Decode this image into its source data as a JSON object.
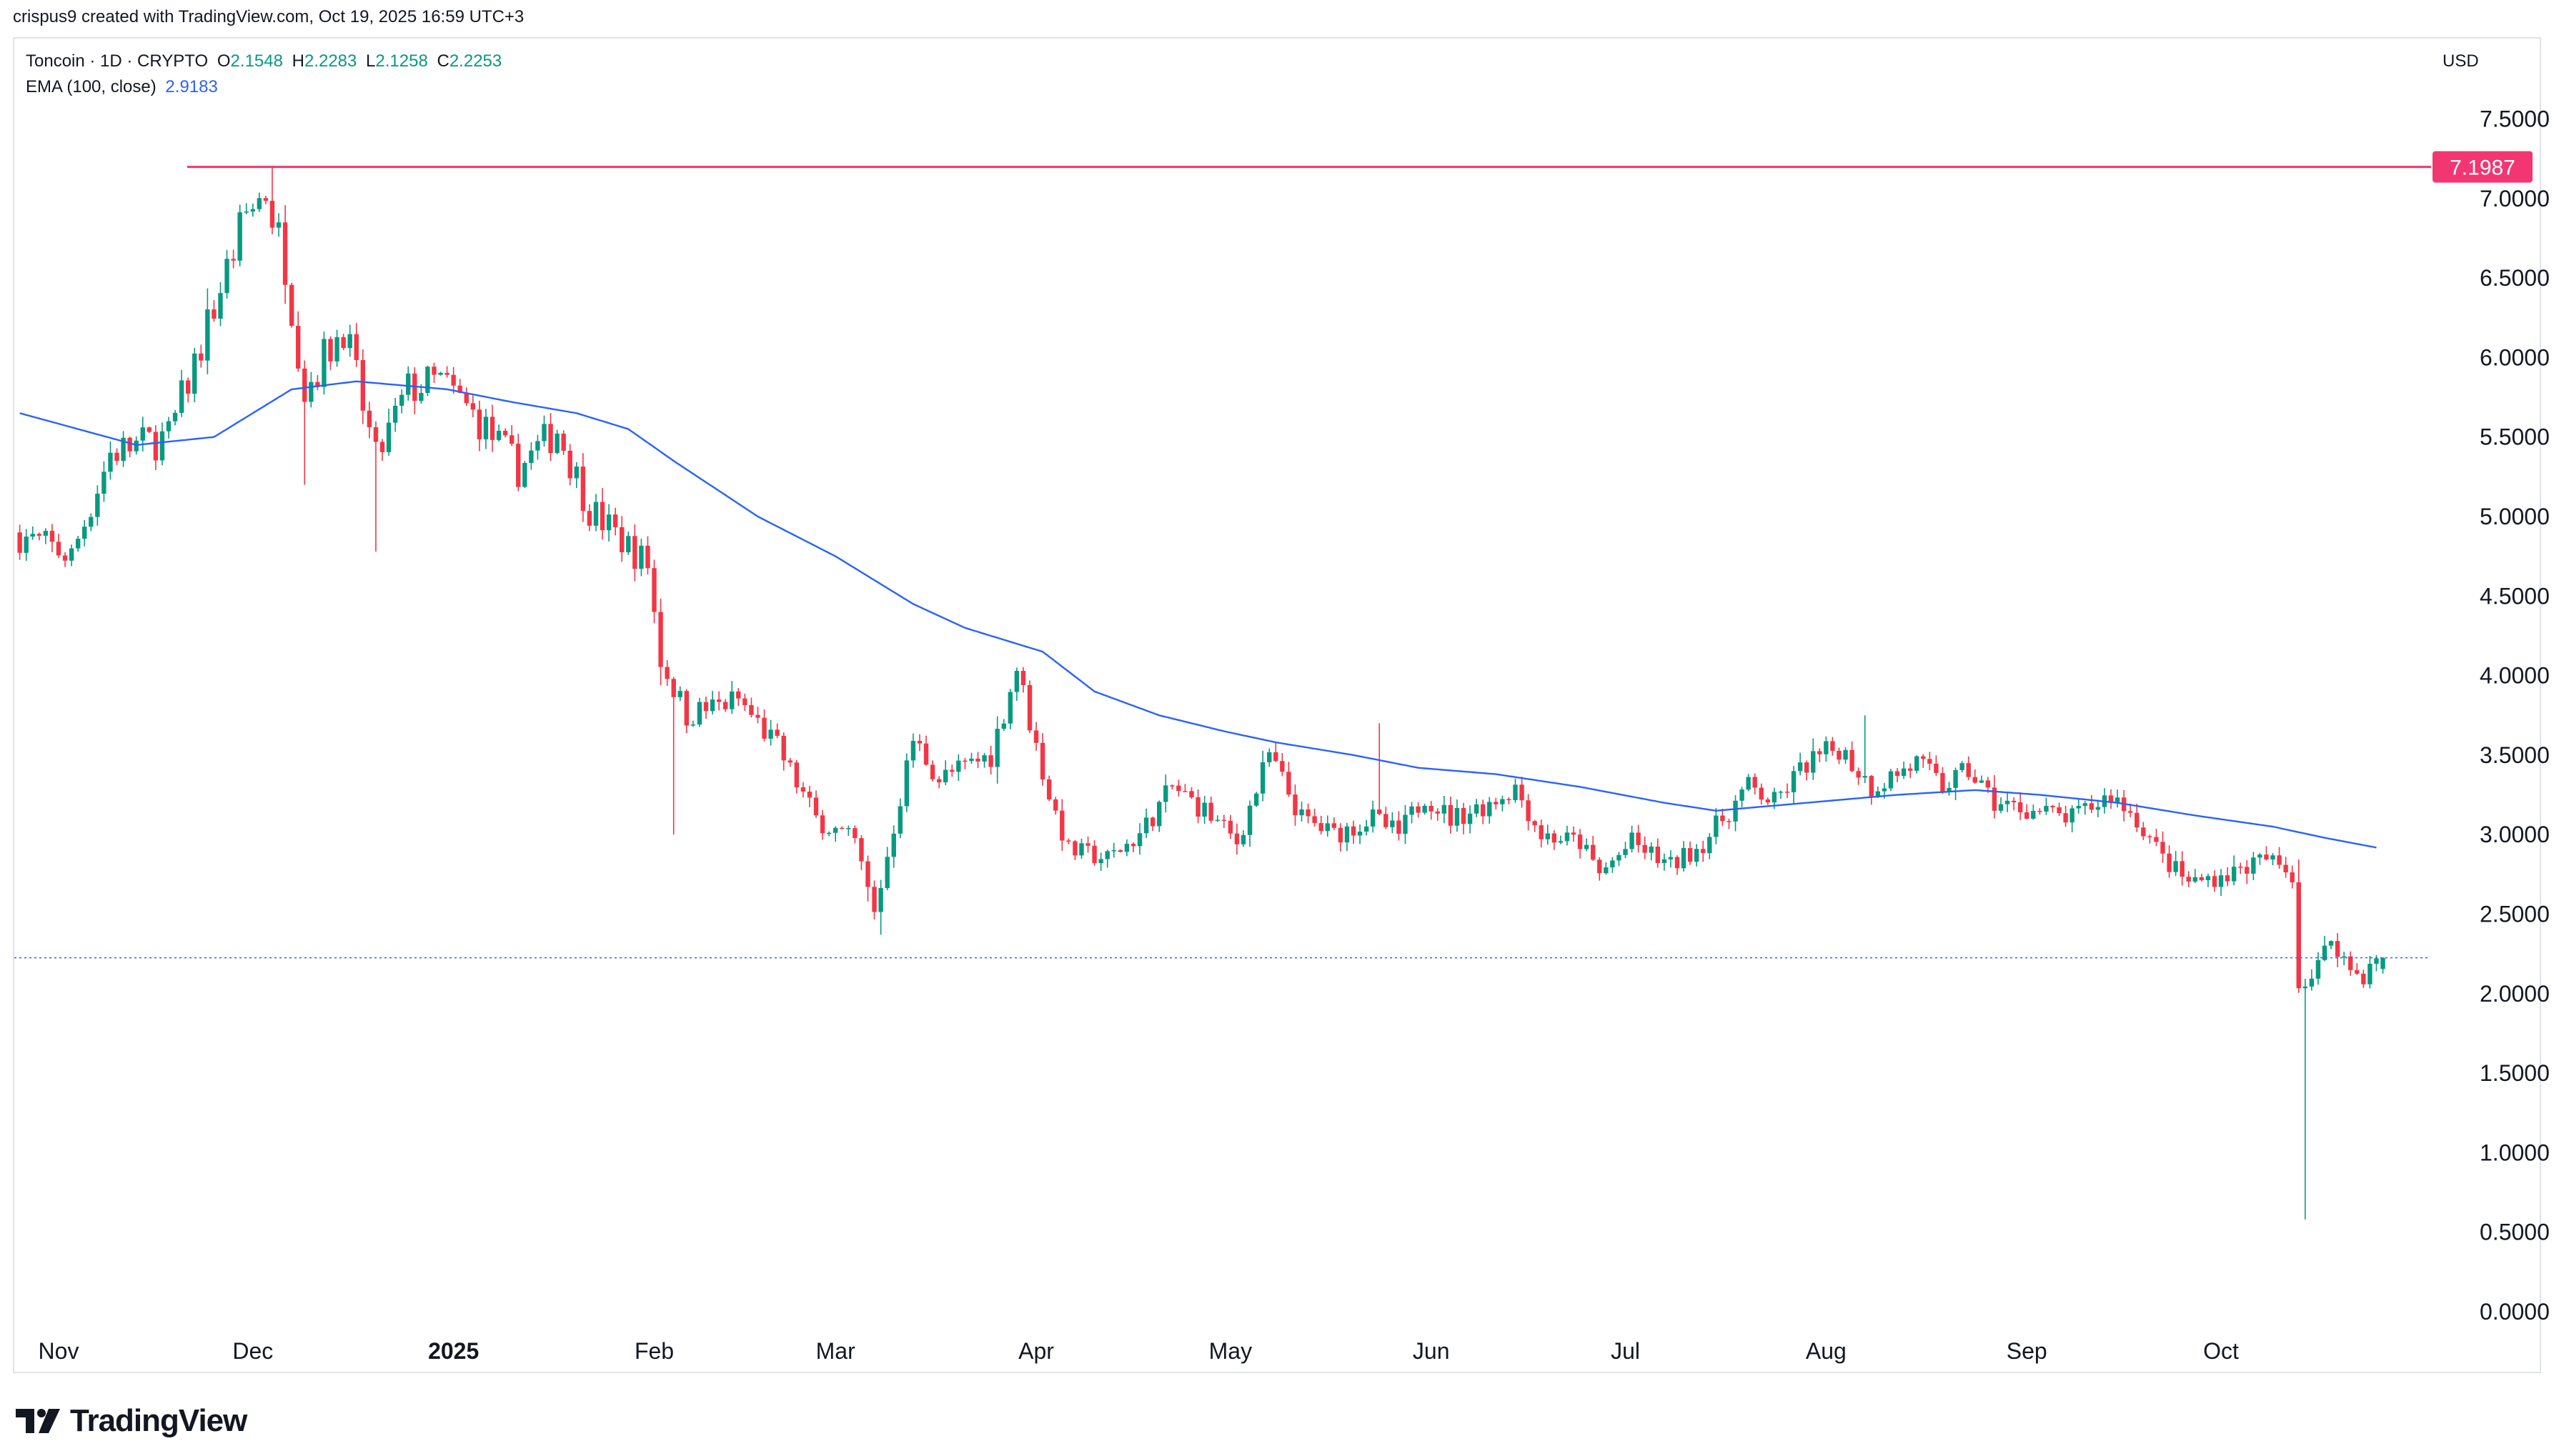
{
  "header": {
    "attribution": "crispus9 created with TradingView.com, Oct 19, 2025 16:59 UTC+3"
  },
  "legend": {
    "symbol": "Toncoin · 1D · CRYPTO",
    "o_label": "O",
    "o_value": "2.1548",
    "h_label": "H",
    "h_value": "2.2283",
    "l_label": "L",
    "l_value": "2.1258",
    "c_label": "C",
    "c_value": "2.2253",
    "ema_label": "EMA (100, close)",
    "ema_value": "2.9183"
  },
  "currency": "USD",
  "horizontal_line": {
    "value": 7.1987,
    "label": "7.1987",
    "color": "#f23671"
  },
  "current_price": 2.2253,
  "colors": {
    "up": "#089981",
    "down": "#f23645",
    "ema": "#2962ff",
    "hline": "#f23671",
    "grid": "#e0e3eb"
  },
  "branding": {
    "name": "TradingView"
  },
  "chart_data": {
    "type": "candlestick",
    "x_axis_labels": [
      "Nov",
      "Dec",
      "2025",
      "Feb",
      "Mar",
      "Apr",
      "May",
      "Jun",
      "Jul",
      "Aug",
      "Sep",
      "Oct"
    ],
    "x_axis_label_day_index": [
      0,
      30,
      61,
      92,
      120,
      151,
      181,
      212,
      242,
      273,
      304,
      334
    ],
    "y_ticks": [
      "0.0000",
      "0.5000",
      "1.0000",
      "1.5000",
      "2.0000",
      "2.5000",
      "3.0000",
      "3.5000",
      "4.0000",
      "4.5000",
      "5.0000",
      "5.5000",
      "6.0000",
      "6.5000",
      "7.0000",
      "7.5000"
    ],
    "ylim": [
      0,
      7.5
    ],
    "price_anchors": [
      [
        -6,
        4.9
      ],
      [
        3,
        4.75
      ],
      [
        9,
        5.4
      ],
      [
        18,
        5.5
      ],
      [
        24,
        6.2
      ],
      [
        30,
        6.9
      ],
      [
        33,
        7.05
      ],
      [
        36,
        6.6
      ],
      [
        39,
        5.8
      ],
      [
        45,
        6.2
      ],
      [
        50,
        5.35
      ],
      [
        55,
        5.8
      ],
      [
        60,
        5.85
      ],
      [
        66,
        5.6
      ],
      [
        72,
        5.3
      ],
      [
        78,
        5.55
      ],
      [
        83,
        5.05
      ],
      [
        88,
        4.85
      ],
      [
        92,
        4.7
      ],
      [
        94,
        4.1
      ],
      [
        98,
        3.75
      ],
      [
        106,
        3.85
      ],
      [
        112,
        3.55
      ],
      [
        118,
        3.1
      ],
      [
        124,
        2.95
      ],
      [
        127,
        2.5
      ],
      [
        133,
        3.6
      ],
      [
        137,
        3.35
      ],
      [
        145,
        3.5
      ],
      [
        149,
        4.05
      ],
      [
        152,
        3.55
      ],
      [
        154,
        3.25
      ],
      [
        157,
        2.9
      ],
      [
        163,
        2.85
      ],
      [
        168,
        3.0
      ],
      [
        173,
        3.3
      ],
      [
        178,
        3.15
      ],
      [
        183,
        2.95
      ],
      [
        188,
        3.5
      ],
      [
        193,
        3.1
      ],
      [
        198,
        3.0
      ],
      [
        204,
        3.1
      ],
      [
        208,
        3.0
      ],
      [
        212,
        3.25
      ],
      [
        216,
        3.1
      ],
      [
        222,
        3.2
      ],
      [
        226,
        3.3
      ],
      [
        230,
        3.0
      ],
      [
        236,
        2.95
      ],
      [
        239,
        2.75
      ],
      [
        244,
        2.95
      ],
      [
        250,
        2.8
      ],
      [
        255,
        2.95
      ],
      [
        262,
        3.3
      ],
      [
        266,
        3.2
      ],
      [
        271,
        3.45
      ],
      [
        276,
        3.55
      ],
      [
        281,
        3.3
      ],
      [
        288,
        3.45
      ],
      [
        292,
        3.3
      ],
      [
        296,
        3.4
      ],
      [
        300,
        3.2
      ],
      [
        306,
        3.15
      ],
      [
        312,
        3.1
      ],
      [
        318,
        3.25
      ],
      [
        322,
        3.1
      ],
      [
        326,
        2.85
      ],
      [
        330,
        2.7
      ],
      [
        336,
        2.75
      ],
      [
        342,
        2.85
      ],
      [
        346,
        2.75
      ],
      [
        347,
        2.05
      ],
      [
        349,
        2.1
      ],
      [
        352,
        2.35
      ],
      [
        355,
        2.15
      ],
      [
        357,
        2.1
      ],
      [
        359,
        2.2253
      ]
    ],
    "ema_anchors": [
      [
        -6,
        5.65
      ],
      [
        12,
        5.45
      ],
      [
        24,
        5.5
      ],
      [
        36,
        5.8
      ],
      [
        46,
        5.85
      ],
      [
        60,
        5.8
      ],
      [
        70,
        5.72
      ],
      [
        80,
        5.65
      ],
      [
        88,
        5.55
      ],
      [
        95,
        5.35
      ],
      [
        108,
        5.0
      ],
      [
        120,
        4.75
      ],
      [
        132,
        4.45
      ],
      [
        140,
        4.3
      ],
      [
        152,
        4.15
      ],
      [
        160,
        3.9
      ],
      [
        170,
        3.75
      ],
      [
        180,
        3.65
      ],
      [
        188,
        3.58
      ],
      [
        200,
        3.5
      ],
      [
        210,
        3.42
      ],
      [
        222,
        3.38
      ],
      [
        235,
        3.3
      ],
      [
        248,
        3.2
      ],
      [
        256,
        3.15
      ],
      [
        270,
        3.2
      ],
      [
        284,
        3.25
      ],
      [
        296,
        3.28
      ],
      [
        306,
        3.25
      ],
      [
        318,
        3.2
      ],
      [
        330,
        3.12
      ],
      [
        342,
        3.05
      ],
      [
        350,
        2.98
      ],
      [
        358,
        2.9183
      ]
    ],
    "notable_wicks": [
      {
        "day": 33,
        "high": 7.1987
      },
      {
        "day": 95,
        "low": 3.0
      },
      {
        "day": 49,
        "low": 4.78
      },
      {
        "day": 38,
        "low": 5.2
      },
      {
        "day": 204,
        "high": 3.7
      },
      {
        "day": 347,
        "low": 0.58
      },
      {
        "day": 127,
        "low": 2.37
      },
      {
        "day": 279,
        "high": 3.75
      }
    ],
    "last_candle": {
      "open": 2.1548,
      "high": 2.2283,
      "low": 2.1258,
      "close": 2.2253
    },
    "series": [
      {
        "name": "Toncoin · 1D · CRYPTO",
        "kind": "candles"
      },
      {
        "name": "EMA (100, close)",
        "kind": "line",
        "last_value": 2.9183
      }
    ]
  }
}
